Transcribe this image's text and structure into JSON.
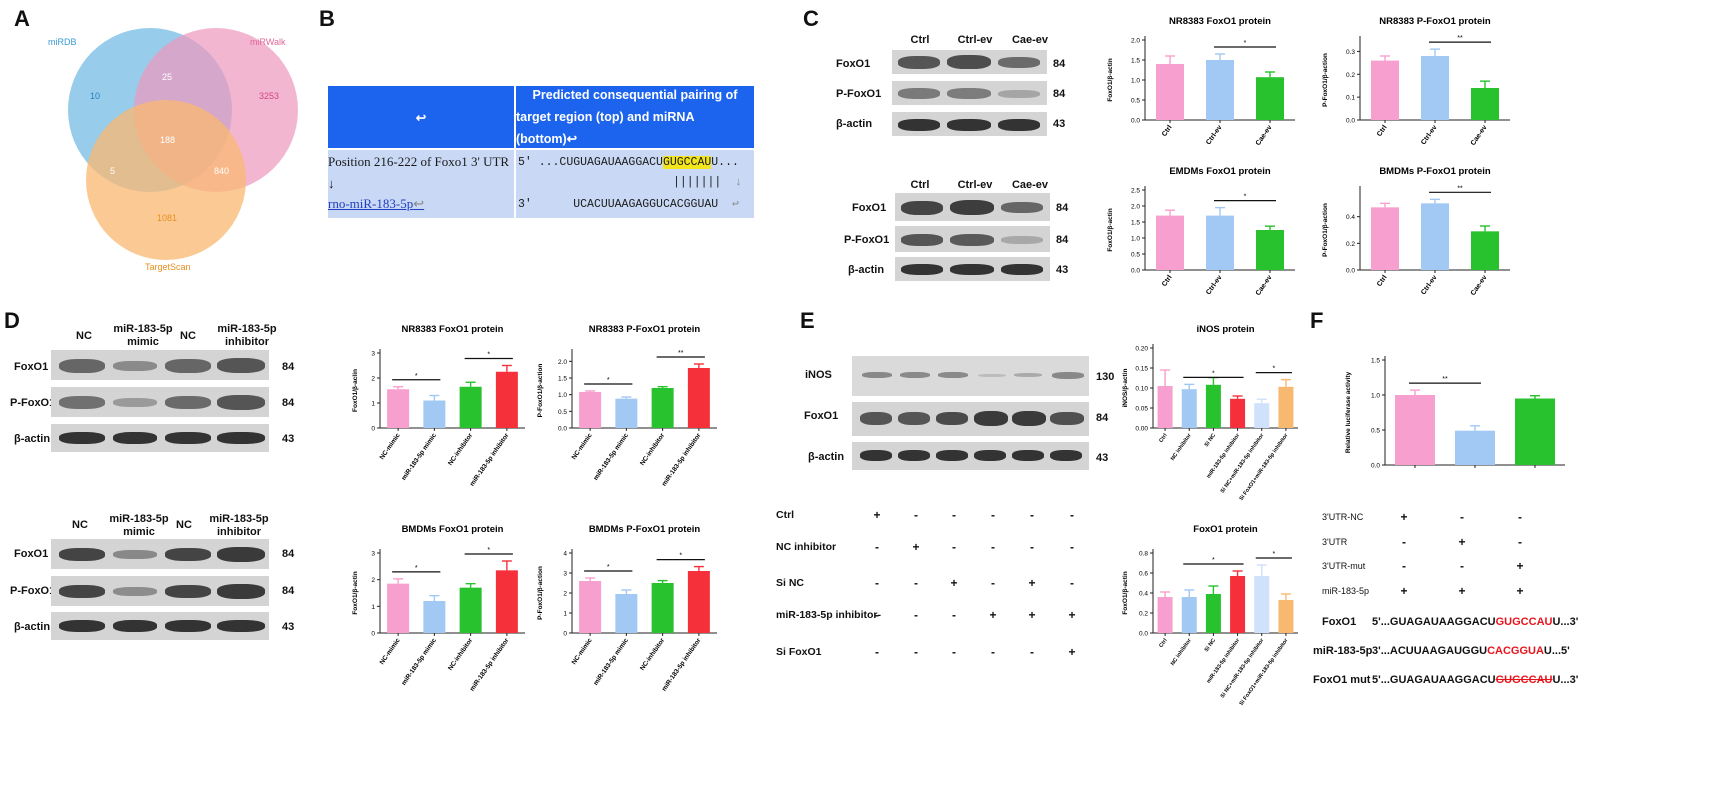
{
  "panels": {
    "A": {
      "letter": "A",
      "venn": {
        "sets": [
          "miRDB",
          "miRWalk",
          "TargetScan"
        ],
        "regions": {
          "only_mirdb": "10",
          "mirdb_mirwalk": "25",
          "only_mirwalk": "3253",
          "all_three": "188",
          "mirdb_targetscan": "5",
          "mirwalk_targetscan": "840",
          "only_targetscan": "1081"
        },
        "colors": {
          "miRDB": "#6cb6e2",
          "miRWalk": "#ee97bd",
          "TargetScan": "#f9b870"
        }
      }
    },
    "B": {
      "letter": "B",
      "header_left": "↩",
      "header_right_l1": "Predicted consequential pairing of",
      "header_right_l2": "target region (top) and miRNA (bottom)↩",
      "row1_left": "Position 216-222 of Foxo1 3' UTR",
      "row1_prime": "5'",
      "row1_seq_a": "...CUGUAGAUAAGGACU",
      "row1_seq_hl": "GUGCCAU",
      "row1_seq_b": "U...",
      "row_mid_left": "↓",
      "row_mid_bars": "|||||||",
      "row_mid_arrow": "↓",
      "row2_left": "rno-miR-183-5p",
      "row2_left_suffix": "↩",
      "row2_prime": "3'",
      "row2_seq": "UCACUUAAGAGGUCACGGUAU",
      "row2_suffix": "↩"
    },
    "C": {
      "letter": "C",
      "blot_top": {
        "lanes": [
          "Ctrl",
          "Ctrl-ev",
          "Cae-ev"
        ],
        "rows": [
          "FoxO1",
          "P-FoxO1",
          "β-actin"
        ],
        "kd": [
          "84",
          "84",
          "43"
        ]
      },
      "blot_bottom": {
        "lanes": [
          "Ctrl",
          "Ctrl-ev",
          "Cae-ev"
        ],
        "rows": [
          "FoxO1",
          "P-FoxO1",
          "β-actin"
        ],
        "kd": [
          "84",
          "84",
          "43"
        ]
      }
    },
    "D": {
      "letter": "D",
      "blot_top": {
        "lanes_l1": [
          "NC",
          "miR-183-5p",
          "NC",
          "miR-183-5p"
        ],
        "lanes_l2": [
          "",
          "mimic",
          "",
          "inhibitor"
        ],
        "rows": [
          "FoxO1",
          "P-FoxO1",
          "β-actin"
        ],
        "kd": [
          "84",
          "84",
          "43"
        ]
      },
      "blot_bottom": {
        "lanes_l1": [
          "NC",
          "miR-183-5p",
          "NC",
          "miR-183-5p"
        ],
        "lanes_l2": [
          "",
          "mimic",
          "",
          "inhibitor"
        ],
        "rows": [
          "FoxO1",
          "P-FoxO1",
          "β-actin"
        ],
        "kd": [
          "84",
          "84",
          "43"
        ]
      }
    },
    "E": {
      "letter": "E",
      "blot": {
        "rows": [
          "iNOS",
          "FoxO1",
          "β-actin"
        ],
        "kd": [
          "130",
          "84",
          "43"
        ]
      },
      "grid": {
        "rows": [
          {
            "label": "Ctrl",
            "values": [
              "+",
              "-",
              "-",
              "-",
              "-",
              "-"
            ]
          },
          {
            "label": "NC  inhibitor",
            "values": [
              "-",
              "+",
              "-",
              "-",
              "-",
              "-"
            ]
          },
          {
            "label": "Si NC",
            "values": [
              "-",
              "-",
              "+",
              "-",
              "+",
              "-"
            ]
          },
          {
            "label": "miR-183-5p inhibitor-",
            "values": [
              "-",
              "-",
              "-",
              "+",
              "+",
              "+"
            ]
          },
          {
            "label": "Si FoxO1",
            "values": [
              "-",
              "-",
              "-",
              "-",
              "-",
              "+"
            ]
          }
        ]
      }
    },
    "F": {
      "letter": "F",
      "grid": {
        "rows": [
          {
            "label": "3'UTR-NC",
            "values": [
              "+",
              "-",
              "-"
            ]
          },
          {
            "label": "3'UTR",
            "values": [
              "-",
              "+",
              "-"
            ]
          },
          {
            "label": "3'UTR-mut",
            "values": [
              "-",
              "-",
              "+"
            ]
          },
          {
            "label": "miR-183-5p",
            "values": [
              "+",
              "+",
              "+"
            ]
          }
        ]
      },
      "sequences": [
        {
          "name": "FoxO1",
          "prefix": "5'...GUAGAUAAGGACU",
          "hl": "GUGCCAU",
          "suffix": "U...3'",
          "strike": false
        },
        {
          "name": "miR-183-5p",
          "prefix": "3'...ACUUAAGAUGGU",
          "hl": "CACGGUA",
          "suffix": "U...5'",
          "strike": false
        },
        {
          "name": "FoxO1 mut",
          "prefix": "5'...GUAGAUAAGGACU",
          "hl": "GUGCCAU",
          "suffix": "U...3'",
          "strike": true
        }
      ]
    }
  },
  "chart_data": [
    {
      "id": "C1",
      "type": "bar",
      "title": "NR8383 FoxO1 protein",
      "ylabel": "FoxO1/β-actin",
      "categories": [
        "Ctrl",
        "Ctrl-ev",
        "Cae-ev"
      ],
      "values": [
        1.4,
        1.5,
        1.07
      ],
      "errors": [
        0.2,
        0.15,
        0.13
      ],
      "ylim": [
        0,
        2.0
      ],
      "yticks": [
        "0.0",
        "0.5",
        "1.0",
        "1.5",
        "2.0"
      ],
      "colors": [
        "#f79fce",
        "#a2c8f4",
        "#27c22d"
      ],
      "sig": [
        {
          "from": 1,
          "to": 2,
          "label": "*"
        }
      ]
    },
    {
      "id": "C2",
      "type": "bar",
      "title": "NR8383 P-FoxO1 protein",
      "ylabel": "P-FoxO1/β-action",
      "categories": [
        "Ctrl",
        "Ctrl-ev",
        "Cae-ev"
      ],
      "values": [
        0.26,
        0.28,
        0.14
      ],
      "errors": [
        0.02,
        0.03,
        0.03
      ],
      "ylim": [
        0,
        0.35
      ],
      "yticks": [
        "0.0",
        "0.1",
        "0.2",
        "0.3"
      ],
      "colors": [
        "#f79fce",
        "#a2c8f4",
        "#27c22d"
      ],
      "sig": [
        {
          "from": 1,
          "to": 2,
          "label": "**"
        }
      ]
    },
    {
      "id": "C3",
      "type": "bar",
      "title": "EMDMs FoxO1 protein",
      "ylabel": "FoxO1/β-actin",
      "categories": [
        "Ctrl",
        "Ctrl-ev",
        "Cae-ev"
      ],
      "values": [
        1.7,
        1.7,
        1.25
      ],
      "errors": [
        0.17,
        0.25,
        0.12
      ],
      "ylim": [
        0,
        2.5
      ],
      "yticks": [
        "0.0",
        "0.5",
        "1.0",
        "1.5",
        "2.0",
        "2.5"
      ],
      "colors": [
        "#f79fce",
        "#a2c8f4",
        "#27c22d"
      ],
      "sig": [
        {
          "from": 1,
          "to": 2,
          "label": "*"
        }
      ]
    },
    {
      "id": "C4",
      "type": "bar",
      "title": "BMDMs P-FoxO1 protein",
      "ylabel": "P-FoxO1/β-action",
      "categories": [
        "Ctrl",
        "Ctrl-ev",
        "Cae-ev"
      ],
      "values": [
        0.47,
        0.5,
        0.29
      ],
      "errors": [
        0.03,
        0.03,
        0.04
      ],
      "ylim": [
        0,
        0.6
      ],
      "yticks": [
        "0.0",
        "0.2",
        "0.4"
      ],
      "colors": [
        "#f79fce",
        "#a2c8f4",
        "#27c22d"
      ],
      "sig": [
        {
          "from": 1,
          "to": 2,
          "label": "**"
        }
      ]
    },
    {
      "id": "D1",
      "type": "bar",
      "title": "NR8383 FoxO1 protein",
      "ylabel": "FoxO1/β-aclin",
      "categories": [
        "NC-mimic",
        "miR-183-5p mimic",
        "NC-inhibitor",
        "miR-183-5p inhibitor"
      ],
      "values": [
        1.55,
        1.1,
        1.65,
        2.25
      ],
      "errors": [
        0.1,
        0.2,
        0.18,
        0.25
      ],
      "ylim": [
        0,
        3
      ],
      "yticks": [
        "0",
        "1",
        "2",
        "3"
      ],
      "colors": [
        "#f79fce",
        "#a2c8f4",
        "#27c22d",
        "#f5303a"
      ],
      "sig": [
        {
          "from": 0,
          "to": 1,
          "label": "*"
        },
        {
          "from": 2,
          "to": 3,
          "label": "*"
        }
      ]
    },
    {
      "id": "D2",
      "type": "bar",
      "title": "NR8383 P-FoxO1 protein",
      "ylabel": "P-FoxO1/β-action",
      "categories": [
        "NC-mimic",
        "miR-183-5p mimic",
        "NC-inhibitor",
        "miR-183-5p inhibitor"
      ],
      "values": [
        1.08,
        0.88,
        1.2,
        1.8
      ],
      "errors": [
        0.03,
        0.05,
        0.04,
        0.12
      ],
      "ylim": [
        0,
        2.25
      ],
      "yticks": [
        "0.0",
        "0.5",
        "1.0",
        "1.5",
        "2.0"
      ],
      "colors": [
        "#f79fce",
        "#a2c8f4",
        "#27c22d",
        "#f5303a"
      ],
      "sig": [
        {
          "from": 0,
          "to": 1,
          "label": "*"
        },
        {
          "from": 2,
          "to": 3,
          "label": "**"
        }
      ]
    },
    {
      "id": "D3",
      "type": "bar",
      "title": "BMDMs FoxO1 protein",
      "ylabel": "FoxO1/β-actin",
      "categories": [
        "NC-mimic",
        "miR-183-5p mimic",
        "NC-inhibitor",
        "miR-183-5p inhibitor"
      ],
      "values": [
        1.85,
        1.2,
        1.7,
        2.35
      ],
      "errors": [
        0.18,
        0.2,
        0.15,
        0.35
      ],
      "ylim": [
        0,
        3
      ],
      "yticks": [
        "0",
        "1",
        "2",
        "3"
      ],
      "colors": [
        "#f79fce",
        "#a2c8f4",
        "#27c22d",
        "#f5303a"
      ],
      "sig": [
        {
          "from": 0,
          "to": 1,
          "label": "*"
        },
        {
          "from": 2,
          "to": 3,
          "label": "*"
        }
      ]
    },
    {
      "id": "D4",
      "type": "bar",
      "title": "BMDMs P-FoxO1 protein",
      "ylabel": "P-FoxO1/β-action",
      "categories": [
        "NC-mimic",
        "miR-183-5p mimic",
        "NC-inhibitor",
        "miR-183-5p inhibitor"
      ],
      "values": [
        2.6,
        1.95,
        2.5,
        3.1
      ],
      "errors": [
        0.15,
        0.2,
        0.12,
        0.22
      ],
      "ylim": [
        0,
        4
      ],
      "yticks": [
        "0",
        "1",
        "2",
        "3",
        "4"
      ],
      "colors": [
        "#f79fce",
        "#a2c8f4",
        "#27c22d",
        "#f5303a"
      ],
      "sig": [
        {
          "from": 0,
          "to": 1,
          "label": "*"
        },
        {
          "from": 2,
          "to": 3,
          "label": "*"
        }
      ]
    },
    {
      "id": "E1",
      "type": "bar",
      "title": "iNOS protein",
      "ylabel": "iNOS/β-actin",
      "categories": [
        "Ctrl",
        "NC inhibitor",
        "Si NC",
        "miR-183-5p inhibitor",
        "Si NC+miR-183-5p inhibitor",
        "Si FoxO1+miR-183-5p inhibitor"
      ],
      "values": [
        0.105,
        0.097,
        0.108,
        0.073,
        0.062,
        0.103
      ],
      "errors": [
        0.04,
        0.012,
        0.018,
        0.007,
        0.01,
        0.018
      ],
      "ylim": [
        0,
        0.2
      ],
      "yticks": [
        "0.00",
        "0.05",
        "0.10",
        "0.15",
        "0.20"
      ],
      "colors": [
        "#f79fce",
        "#a2c8f4",
        "#27c22d",
        "#f5303a",
        "#cfe1fb",
        "#f9b870"
      ],
      "sig": [
        {
          "from": 1,
          "to": 3,
          "label": "*"
        },
        {
          "from": 4,
          "to": 5,
          "label": "*"
        }
      ]
    },
    {
      "id": "E2",
      "type": "bar",
      "title": "FoxO1 protein",
      "ylabel": "FoxO1/β-actin",
      "categories": [
        "Ctrl",
        "NC inhibitor",
        "Si NC",
        "miR-183-5p inhibitor",
        "Si NC+miR-183-5p inhibitor",
        "Si FoxO1+miR-183-5p inhibitor"
      ],
      "values": [
        0.36,
        0.36,
        0.39,
        0.57,
        0.57,
        0.33
      ],
      "errors": [
        0.05,
        0.07,
        0.08,
        0.05,
        0.11,
        0.06
      ],
      "ylim": [
        0,
        0.8
      ],
      "yticks": [
        "0.0",
        "0.2",
        "0.4",
        "0.6",
        "0.8"
      ],
      "colors": [
        "#f79fce",
        "#a2c8f4",
        "#27c22d",
        "#f5303a",
        "#cfe1fb",
        "#f9b870"
      ],
      "sig": [
        {
          "from": 1,
          "to": 3,
          "label": "*"
        },
        {
          "from": 4,
          "to": 5,
          "label": "*"
        }
      ]
    },
    {
      "id": "F1",
      "type": "bar",
      "title": "",
      "ylabel": "Relative luciferase activity",
      "categories": [
        "3'UTR-NC",
        "3'UTR",
        "3'UTR-mut"
      ],
      "values": [
        1.0,
        0.49,
        0.95
      ],
      "errors": [
        0.07,
        0.07,
        0.04
      ],
      "ylim": [
        0,
        1.5
      ],
      "yticks": [
        "0.0",
        "0.5",
        "1.0",
        "1.5"
      ],
      "colors": [
        "#f79fce",
        "#a2c8f4",
        "#27c22d"
      ],
      "sig": [
        {
          "from": 0,
          "to": 1,
          "label": "**"
        }
      ]
    }
  ]
}
